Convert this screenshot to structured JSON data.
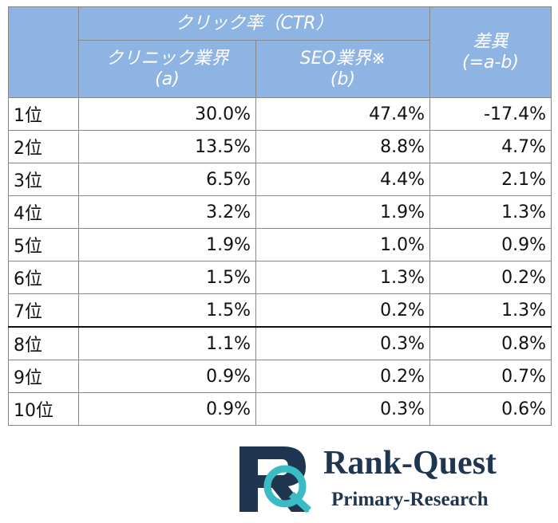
{
  "header": {
    "group": "クリック率（CTR）",
    "col_a": [
      "クリニック業界",
      "(a)"
    ],
    "col_b": [
      "SEO業界※",
      "(b)"
    ],
    "diff": [
      "差異",
      "(=a-b)"
    ]
  },
  "table": {
    "rows": [
      [
        "1位",
        "30.0%",
        "47.4%",
        "-17.4%"
      ],
      [
        "2位",
        "13.5%",
        "8.8%",
        "4.7%"
      ],
      [
        "3位",
        "6.5%",
        "4.4%",
        "2.1%"
      ],
      [
        "4位",
        "3.2%",
        "1.9%",
        "1.3%"
      ],
      [
        "5位",
        "1.9%",
        "1.0%",
        "0.9%"
      ],
      [
        "6位",
        "1.5%",
        "1.3%",
        "0.2%"
      ],
      [
        "7位",
        "1.5%",
        "0.2%",
        "1.3%"
      ],
      [
        "8位",
        "1.1%",
        "0.3%",
        "0.8%"
      ],
      [
        "9位",
        "0.9%",
        "0.2%",
        "0.7%"
      ],
      [
        "10位",
        "0.9%",
        "0.3%",
        "0.6%"
      ]
    ]
  },
  "logo": {
    "title": "Rank-Quest",
    "subtitle": "Primary-Research"
  }
}
